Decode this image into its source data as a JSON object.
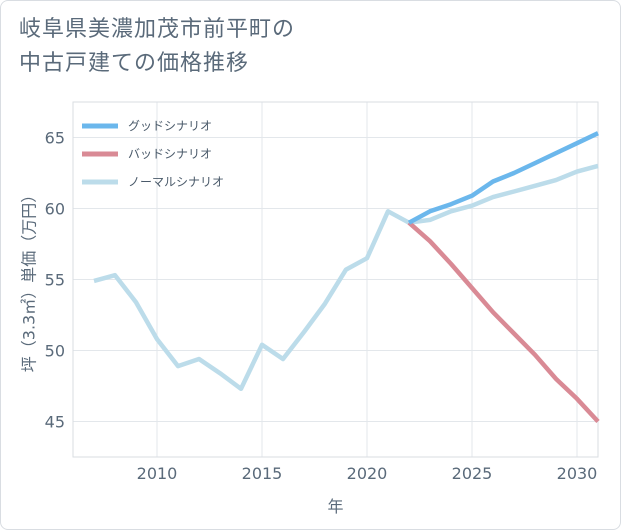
{
  "title": {
    "line1": "岐阜県美濃加茂市前平町の",
    "line2": "中古戸建ての価格推移"
  },
  "chart_data": {
    "type": "line",
    "xlabel": "年",
    "ylabel": "坪（3.3㎡）単価（万円）",
    "xlim": [
      2006,
      2031
    ],
    "ylim": [
      42.5,
      67.5
    ],
    "xticks": [
      2010,
      2015,
      2020,
      2025,
      2030
    ],
    "yticks": [
      45,
      50,
      55,
      60,
      65
    ],
    "grid": true,
    "legend_position": "top-left",
    "series": [
      {
        "name": "グッドシナリオ",
        "color": "#6bb7ec",
        "x": [
          2022,
          2023,
          2024,
          2025,
          2026,
          2027,
          2028,
          2029,
          2030,
          2031
        ],
        "y": [
          59.0,
          59.8,
          60.3,
          60.9,
          61.9,
          62.5,
          63.2,
          63.9,
          64.6,
          65.3
        ]
      },
      {
        "name": "バッドシナリオ",
        "color": "#d98a95",
        "x": [
          2022,
          2023,
          2024,
          2025,
          2026,
          2027,
          2028,
          2029,
          2030,
          2031
        ],
        "y": [
          59.0,
          57.7,
          56.1,
          54.4,
          52.7,
          51.2,
          49.7,
          48.0,
          46.6,
          45.0
        ]
      },
      {
        "name": "ノーマルシナリオ",
        "color": "#bcdcea",
        "x": [
          2007,
          2008,
          2009,
          2010,
          2011,
          2012,
          2013,
          2014,
          2015,
          2016,
          2017,
          2018,
          2019,
          2020,
          2021,
          2022,
          2023,
          2024,
          2025,
          2026,
          2027,
          2028,
          2029,
          2030,
          2031
        ],
        "y": [
          54.9,
          55.3,
          53.4,
          50.8,
          48.9,
          49.4,
          48.4,
          47.3,
          50.4,
          49.4,
          51.3,
          53.3,
          55.7,
          56.5,
          59.8,
          59.0,
          59.2,
          59.8,
          60.2,
          60.8,
          61.2,
          61.6,
          62.0,
          62.6,
          63.0
        ]
      }
    ]
  }
}
